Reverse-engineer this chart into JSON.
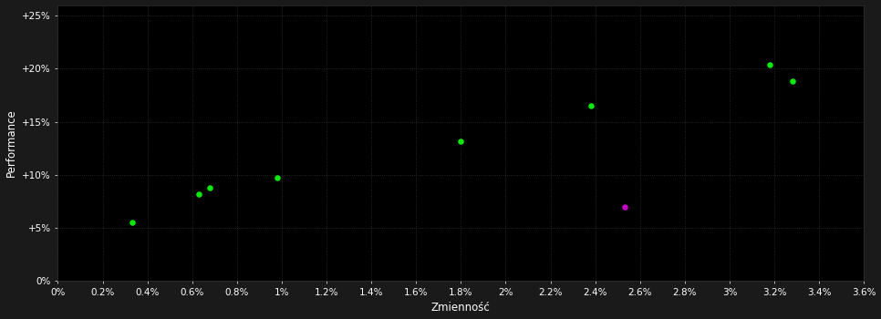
{
  "background_color": "#1a1a1a",
  "plot_bg_color": "#000000",
  "grid_color": "#444444",
  "xlabel": "Zmienność",
  "ylabel": "Performance",
  "xlim": [
    0.0,
    0.036
  ],
  "ylim": [
    0.0,
    0.26
  ],
  "xtick_labels": [
    "0%",
    "0.2%",
    "0.4%",
    "0.6%",
    "0.8%",
    "1%",
    "1.2%",
    "1.4%",
    "1.6%",
    "1.8%",
    "2%",
    "2.2%",
    "2.4%",
    "2.6%",
    "2.8%",
    "3%",
    "3.2%",
    "3.4%",
    "3.6%"
  ],
  "xtick_values": [
    0.0,
    0.002,
    0.004,
    0.006,
    0.008,
    0.01,
    0.012,
    0.014,
    0.016,
    0.018,
    0.02,
    0.022,
    0.024,
    0.026,
    0.028,
    0.03,
    0.032,
    0.034,
    0.036
  ],
  "ytick_labels": [
    "0%",
    "+5%",
    "+10%",
    "+15%",
    "+20%",
    "+25%"
  ],
  "ytick_values": [
    0.0,
    0.05,
    0.1,
    0.15,
    0.2,
    0.25
  ],
  "green_points": [
    [
      0.0033,
      0.055
    ],
    [
      0.0063,
      0.082
    ],
    [
      0.0068,
      0.088
    ],
    [
      0.0098,
      0.097
    ],
    [
      0.018,
      0.132
    ],
    [
      0.0238,
      0.165
    ],
    [
      0.0318,
      0.204
    ],
    [
      0.0328,
      0.188
    ]
  ],
  "magenta_points": [
    [
      0.0253,
      0.07
    ]
  ],
  "green_color": "#00ee00",
  "magenta_color": "#cc00cc",
  "marker_size": 5,
  "tick_color": "#ffffff",
  "label_color": "#ffffff",
  "tick_fontsize": 7.5,
  "label_fontsize": 8.5,
  "grid_linestyle": ":",
  "grid_linewidth": 0.6,
  "grid_alpha": 0.7
}
